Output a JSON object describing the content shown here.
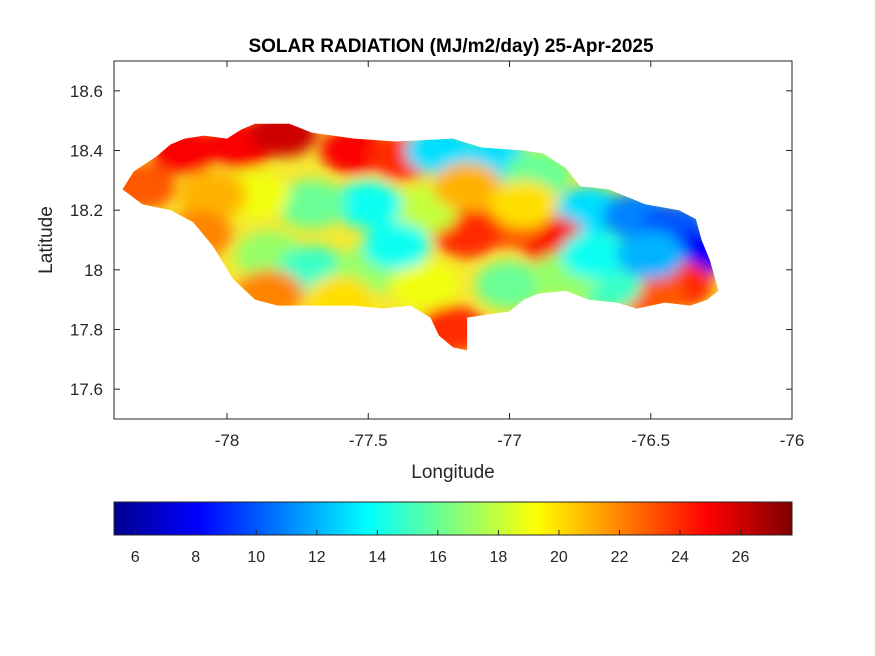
{
  "chart_data": {
    "type": "heatmap",
    "title": "SOLAR RADIATION (MJ/m2/day) 25-Apr-2025",
    "xlabel": "Longitude",
    "ylabel": "Latitude",
    "xlim": [
      -78.4,
      -76
    ],
    "ylim": [
      17.5,
      18.7
    ],
    "x_ticks": [
      "-78",
      "-77.5",
      "-77",
      "-76.5",
      "-76"
    ],
    "y_ticks": [
      "18.6",
      "18.4",
      "18.2",
      "18",
      "17.8",
      "17.6"
    ],
    "colormap": "jet",
    "colorbar": {
      "orientation": "horizontal",
      "range": [
        5.3,
        27.7
      ],
      "ticks": [
        "6",
        "8",
        "10",
        "12",
        "14",
        "16",
        "18",
        "20",
        "22",
        "24",
        "26"
      ]
    },
    "land_outline": [
      [
        -78.37,
        18.27
      ],
      [
        -78.33,
        18.33
      ],
      [
        -78.25,
        18.38
      ],
      [
        -78.2,
        18.42
      ],
      [
        -78.15,
        18.44
      ],
      [
        -78.08,
        18.45
      ],
      [
        -78.0,
        18.44
      ],
      [
        -77.95,
        18.47
      ],
      [
        -77.9,
        18.49
      ],
      [
        -77.78,
        18.49
      ],
      [
        -77.7,
        18.46
      ],
      [
        -77.55,
        18.44
      ],
      [
        -77.4,
        18.43
      ],
      [
        -77.2,
        18.44
      ],
      [
        -77.1,
        18.41
      ],
      [
        -76.95,
        18.4
      ],
      [
        -76.88,
        18.39
      ],
      [
        -76.8,
        18.34
      ],
      [
        -76.75,
        18.28
      ],
      [
        -76.65,
        18.27
      ],
      [
        -76.52,
        18.22
      ],
      [
        -76.4,
        18.2
      ],
      [
        -76.34,
        18.17
      ],
      [
        -76.32,
        18.1
      ],
      [
        -76.29,
        18.03
      ],
      [
        -76.26,
        17.93
      ],
      [
        -76.3,
        17.9
      ],
      [
        -76.36,
        17.88
      ],
      [
        -76.45,
        17.89
      ],
      [
        -76.55,
        17.87
      ],
      [
        -76.62,
        17.89
      ],
      [
        -76.72,
        17.9
      ],
      [
        -76.8,
        17.93
      ],
      [
        -76.9,
        17.92
      ],
      [
        -76.95,
        17.9
      ],
      [
        -77.0,
        17.86
      ],
      [
        -77.08,
        17.85
      ],
      [
        -77.15,
        17.84
      ],
      [
        -77.15,
        17.73
      ],
      [
        -77.2,
        17.74
      ],
      [
        -77.25,
        17.78
      ],
      [
        -77.28,
        17.84
      ],
      [
        -77.35,
        17.88
      ],
      [
        -77.45,
        17.87
      ],
      [
        -77.55,
        17.88
      ],
      [
        -77.7,
        17.88
      ],
      [
        -77.82,
        17.88
      ],
      [
        -77.9,
        17.9
      ],
      [
        -77.98,
        17.97
      ],
      [
        -78.05,
        18.08
      ],
      [
        -78.12,
        18.16
      ],
      [
        -78.2,
        18.2
      ],
      [
        -78.3,
        18.22
      ],
      [
        -78.37,
        18.27
      ]
    ],
    "field_points": [
      [
        -78.3,
        18.28,
        23
      ],
      [
        -78.15,
        18.4,
        25
      ],
      [
        -77.95,
        18.42,
        25
      ],
      [
        -77.8,
        18.46,
        26
      ],
      [
        -77.55,
        18.4,
        25
      ],
      [
        -77.38,
        18.38,
        24
      ],
      [
        -77.25,
        18.4,
        13
      ],
      [
        -77.05,
        18.37,
        13
      ],
      [
        -76.9,
        18.32,
        16
      ],
      [
        -76.72,
        18.2,
        13
      ],
      [
        -76.55,
        18.18,
        11
      ],
      [
        -76.42,
        18.14,
        10
      ],
      [
        -76.35,
        18.05,
        8
      ],
      [
        -76.4,
        17.95,
        24
      ],
      [
        -76.5,
        17.92,
        23
      ],
      [
        -76.65,
        17.95,
        15
      ],
      [
        -76.85,
        18.1,
        25
      ],
      [
        -77.0,
        18.15,
        23
      ],
      [
        -77.15,
        18.12,
        24
      ],
      [
        -77.3,
        18.2,
        18
      ],
      [
        -77.5,
        18.22,
        14
      ],
      [
        -77.7,
        18.22,
        16
      ],
      [
        -77.9,
        18.25,
        19
      ],
      [
        -78.05,
        18.25,
        21
      ],
      [
        -78.1,
        18.12,
        22
      ],
      [
        -77.85,
        18.05,
        17
      ],
      [
        -77.7,
        18.0,
        15
      ],
      [
        -77.5,
        18.0,
        17
      ],
      [
        -77.3,
        17.95,
        19
      ],
      [
        -77.2,
        17.8,
        24
      ],
      [
        -77.0,
        17.95,
        16
      ],
      [
        -76.8,
        17.98,
        17
      ],
      [
        -77.85,
        17.92,
        22
      ],
      [
        -77.6,
        17.9,
        20
      ],
      [
        -77.4,
        18.08,
        14
      ],
      [
        -77.15,
        18.28,
        21
      ],
      [
        -76.95,
        18.22,
        20
      ],
      [
        -76.7,
        18.05,
        14
      ],
      [
        -76.5,
        18.05,
        12
      ]
    ]
  }
}
